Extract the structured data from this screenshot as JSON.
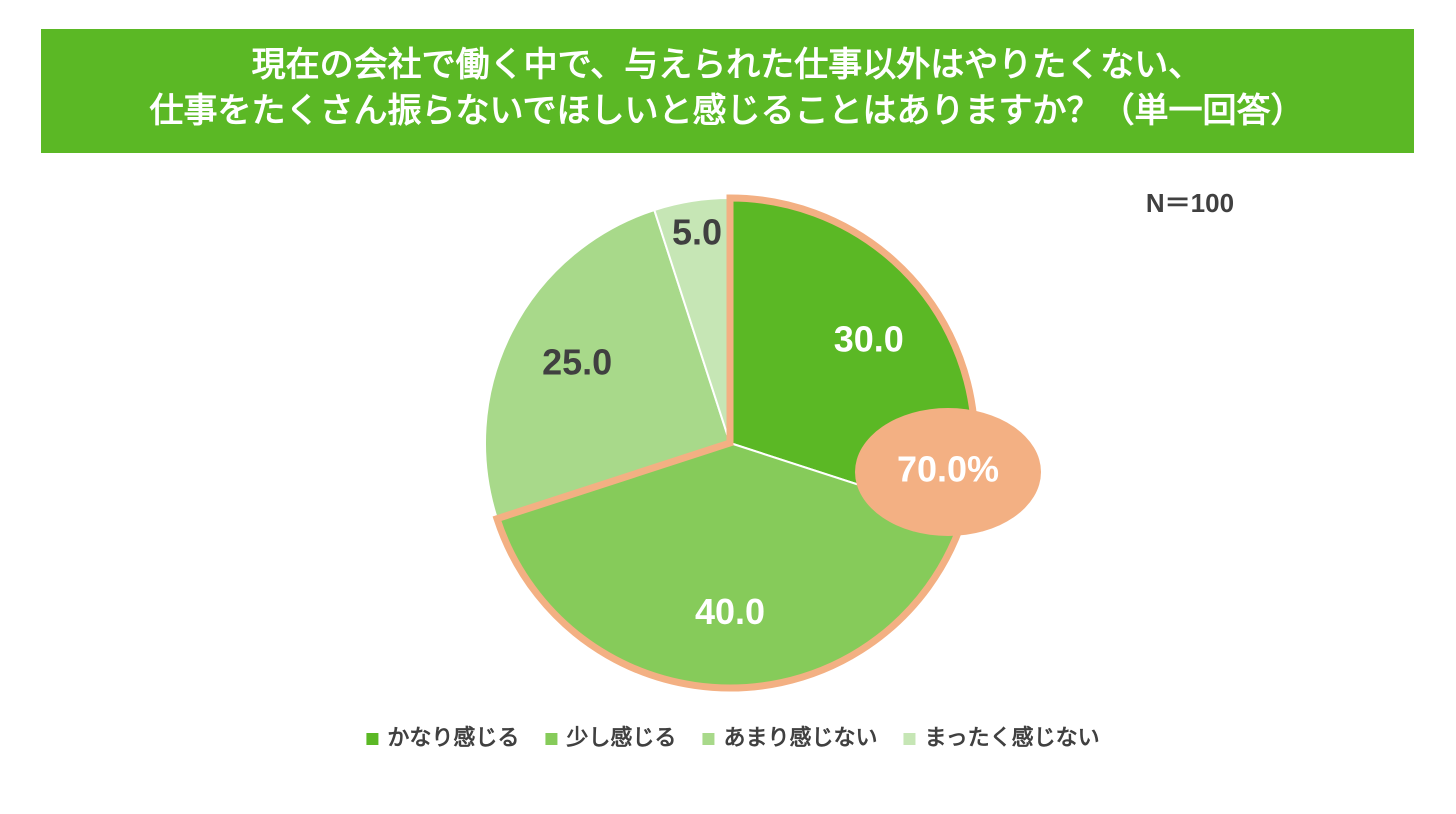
{
  "chart_data": {
    "type": "pie",
    "title": [
      "現在の会社で働く中で、与えられた仕事以外はやりたくない、",
      "仕事をたくさん振らないでほしいと感じることはありますか？（単一回答）"
    ],
    "annotation": "N＝100",
    "categories": [
      "かなり感じる",
      "少し感じる",
      "あまり感じない",
      "まったく感じない"
    ],
    "values": [
      30,
      40,
      25,
      5
    ],
    "value_labels": [
      "30.0",
      "40.0",
      "25.0",
      "5.0"
    ],
    "colors": [
      "#5bb825",
      "#86cb5a",
      "#a8d98a",
      "#c6e6b5"
    ],
    "callout": {
      "value": 70,
      "label": "70.0%"
    },
    "highlight_color": "#f3b083",
    "legend": "bottom"
  }
}
